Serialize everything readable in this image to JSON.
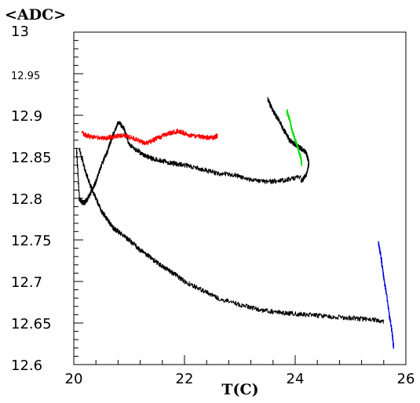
{
  "chart_data": {
    "type": "line",
    "title": "",
    "xlabel": "T(C)",
    "ylabel": "<ADC>",
    "xlim": [
      20,
      26
    ],
    "ylim": [
      12.6,
      13.0
    ],
    "x_ticks": [
      "20",
      "22",
      "24",
      "26"
    ],
    "y_ticks": [
      "12.6",
      "12.65",
      "12.7",
      "12.75",
      "12.8",
      "12.85",
      "12.9",
      "12.95",
      "13"
    ],
    "grid": false,
    "legend": "none",
    "series": [
      {
        "color": "#000000",
        "x": [
          20.05,
          20.1,
          20.15,
          20.2,
          20.3,
          20.4,
          20.5,
          20.6,
          20.7,
          20.8,
          20.9,
          21.0,
          21.2,
          21.4,
          21.6,
          21.8,
          22.0,
          22.3,
          22.6,
          22.9,
          23.2,
          23.5,
          23.8,
          24.1
        ],
        "y": [
          12.86,
          12.8,
          12.795,
          12.795,
          12.805,
          12.82,
          12.84,
          12.855,
          12.875,
          12.892,
          12.885,
          12.865,
          12.855,
          12.848,
          12.845,
          12.842,
          12.84,
          12.835,
          12.83,
          12.828,
          12.822,
          12.82,
          12.822,
          12.826
        ]
      },
      {
        "color": "#000000",
        "x": [
          20.1,
          20.2,
          20.3,
          20.4,
          20.5,
          20.6,
          20.7,
          20.8,
          21.0,
          21.2,
          21.4,
          21.6,
          21.8,
          22.0,
          22.3,
          22.6,
          23.0,
          23.4,
          23.8,
          24.2,
          24.6,
          25.0,
          25.4,
          25.6
        ],
        "y": [
          12.86,
          12.835,
          12.815,
          12.8,
          12.785,
          12.775,
          12.765,
          12.76,
          12.75,
          12.738,
          12.728,
          12.718,
          12.71,
          12.7,
          12.69,
          12.68,
          12.672,
          12.665,
          12.662,
          12.66,
          12.658,
          12.656,
          12.654,
          12.652
        ]
      },
      {
        "color": "#000000",
        "x": [
          23.5,
          23.6,
          23.7,
          23.8,
          23.9,
          24.0,
          24.1,
          24.2,
          24.25,
          24.2,
          24.1
        ],
        "y": [
          12.92,
          12.905,
          12.895,
          12.882,
          12.87,
          12.865,
          12.86,
          12.855,
          12.842,
          12.828,
          12.82
        ]
      },
      {
        "color": "#ff0000",
        "x": [
          20.15,
          20.3,
          20.5,
          20.7,
          20.9,
          21.1,
          21.3,
          21.5,
          21.7,
          21.9,
          22.1,
          22.3,
          22.5,
          22.6
        ],
        "y": [
          12.878,
          12.874,
          12.872,
          12.874,
          12.876,
          12.872,
          12.866,
          12.872,
          12.878,
          12.881,
          12.876,
          12.874,
          12.873,
          12.875
        ]
      },
      {
        "color": "#00dd00",
        "x": [
          23.85,
          23.9,
          23.95,
          24.0,
          24.05,
          24.1,
          24.12
        ],
        "y": [
          12.905,
          12.895,
          12.88,
          12.87,
          12.86,
          12.85,
          12.84
        ]
      },
      {
        "color": "#0000dd",
        "x": [
          25.5,
          25.55,
          25.6,
          25.65,
          25.7,
          25.75,
          25.78
        ],
        "y": [
          12.748,
          12.73,
          12.705,
          12.685,
          12.66,
          12.64,
          12.62
        ]
      }
    ]
  }
}
